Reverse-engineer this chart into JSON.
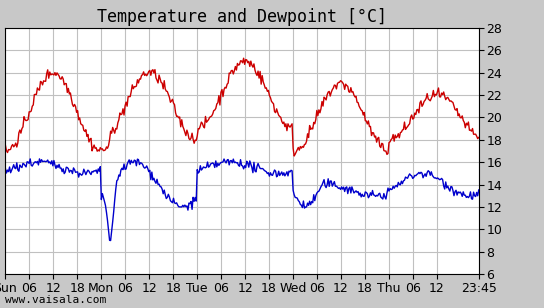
{
  "title": "Temperature and Dewpoint [°C]",
  "ylabel": "",
  "xlabel": "",
  "watermark": "www.vaisala.com",
  "ylim": [
    6,
    28
  ],
  "yticks": [
    6,
    8,
    10,
    12,
    14,
    16,
    18,
    20,
    22,
    24,
    26,
    28
  ],
  "xtick_labels": [
    "Sun",
    "06",
    "12",
    "18",
    "Mon",
    "06",
    "12",
    "18",
    "Tue",
    "06",
    "12",
    "18",
    "Wed",
    "06",
    "12",
    "18",
    "Thu",
    "06",
    "12",
    "23:45"
  ],
  "temp_color": "#cc0000",
  "dew_color": "#0000cc",
  "bg_color": "#c8c8c8",
  "plot_bg_color": "#ffffff",
  "grid_color": "#c0c0c0",
  "title_fontsize": 12,
  "tick_fontsize": 9,
  "watermark_fontsize": 8,
  "line_width": 1.0,
  "n_points": 460
}
